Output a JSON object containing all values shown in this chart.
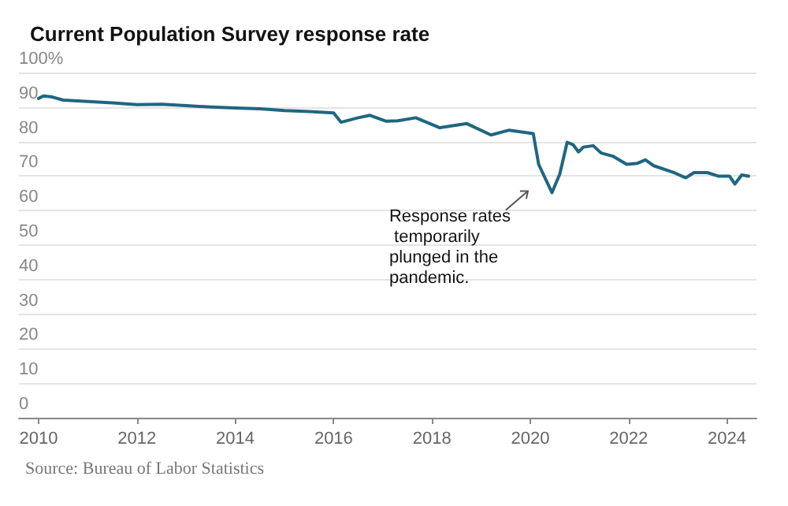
{
  "chart_data": {
    "type": "line",
    "title": "Current Population Survey response rate",
    "x": [
      2010.0,
      2010.1,
      2010.25,
      2010.5,
      2011.0,
      2011.5,
      2012.0,
      2012.5,
      2013.0,
      2013.5,
      2014.0,
      2014.5,
      2015.0,
      2015.5,
      2016.0,
      2016.15,
      2016.5,
      2016.74,
      2017.07,
      2017.3,
      2017.67,
      2018.16,
      2018.71,
      2019.2,
      2019.57,
      2020.06,
      2020.17,
      2020.44,
      2020.6,
      2020.75,
      2020.87,
      2020.98,
      2021.08,
      2021.28,
      2021.44,
      2021.69,
      2021.96,
      2022.18,
      2022.34,
      2022.51,
      2022.94,
      2023.16,
      2023.33,
      2023.6,
      2023.82,
      2024.05,
      2024.16,
      2024.3,
      2024.44
    ],
    "series": [
      {
        "color": "#1f6680",
        "values": [
          92.5,
          93.2,
          93.0,
          92.0,
          91.6,
          91.2,
          90.7,
          90.8,
          90.4,
          90.0,
          89.7,
          89.5,
          89.0,
          88.7,
          88.3,
          85.6,
          86.9,
          87.6,
          85.9,
          86.0,
          86.9,
          84.0,
          85.2,
          81.9,
          83.3,
          82.3,
          73.4,
          65.2,
          70.6,
          79.8,
          79.1,
          77.0,
          78.4,
          78.8,
          76.7,
          75.7,
          73.4,
          73.7,
          74.7,
          73.0,
          70.9,
          69.5,
          71.0,
          71.0,
          70.0,
          70.0,
          67.7,
          70.3,
          70.0
        ]
      }
    ],
    "xlim": [
      2009.6,
      2024.6
    ],
    "xticks": [
      2010,
      2012,
      2014,
      2016,
      2018,
      2020,
      2022,
      2024
    ],
    "ylim": [
      0,
      100
    ],
    "yticks": [
      0,
      10,
      20,
      30,
      40,
      50,
      60,
      70,
      80,
      90,
      {
        "value": 100,
        "label": "100%"
      }
    ],
    "grid": "y",
    "marker": "none",
    "line_style": "solid",
    "annotations": [
      {
        "text": "Response rates temporarily plunged in the pandemic.",
        "x": 2020.4,
        "y": 65.2
      },
      "Source: Bureau of Labor Statistics"
    ]
  }
}
